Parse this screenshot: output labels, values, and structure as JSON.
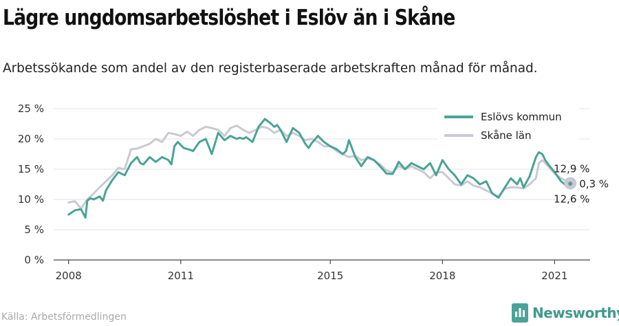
{
  "title": "Lägre ungdomsarbetslöshet i Eslöv än i Skåne",
  "subtitle": "Arbetssökande som andel av den registerbaserade arbetskraften månad för månad.",
  "source": "Källa: Arbetsförmedlingen",
  "brand": "Newsworthy",
  "colors": {
    "eslov": "#4aa396",
    "skane": "#c9c9d3",
    "grid": "#e3e3e3",
    "axis": "#444444"
  },
  "chart_data": {
    "type": "line",
    "x_range": [
      2007.6,
      2021.95
    ],
    "ylim": [
      0,
      25
    ],
    "yticks": [
      0,
      5,
      10,
      15,
      20,
      25
    ],
    "ytick_labels": [
      "0 %",
      "5 %",
      "10 %",
      "15 %",
      "20 %",
      "25 %"
    ],
    "xticks": [
      2008,
      2011,
      2015,
      2018,
      2021
    ],
    "xtick_labels": [
      "2008",
      "2011",
      "2015",
      "2018",
      "2021"
    ],
    "grid": "horizontal",
    "legend": {
      "placement": "top-right",
      "entries": [
        "Eslövs kommun",
        "Skåne län"
      ]
    },
    "annotations": {
      "eslov_end": "12,6 %",
      "skane_end": "12,9 %",
      "difference": "0,3 %"
    },
    "series": [
      {
        "name": "Eslövs kommun",
        "x": [
          2008.0,
          2008.17,
          2008.33,
          2008.45,
          2008.5,
          2008.58,
          2008.67,
          2008.83,
          2008.92,
          2009.0,
          2009.17,
          2009.33,
          2009.5,
          2009.67,
          2009.83,
          2009.92,
          2010.0,
          2010.17,
          2010.33,
          2010.5,
          2010.67,
          2010.75,
          2010.83,
          2010.92,
          2011.08,
          2011.25,
          2011.33,
          2011.5,
          2011.67,
          2011.83,
          2012.0,
          2012.17,
          2012.33,
          2012.5,
          2012.58,
          2012.67,
          2012.75,
          2012.92,
          2013.08,
          2013.25,
          2013.42,
          2013.5,
          2013.58,
          2013.67,
          2013.83,
          2014.0,
          2014.17,
          2014.33,
          2014.42,
          2014.5,
          2014.67,
          2014.83,
          2015.0,
          2015.17,
          2015.33,
          2015.42,
          2015.5,
          2015.67,
          2015.83,
          2016.0,
          2016.17,
          2016.33,
          2016.5,
          2016.67,
          2016.83,
          2017.0,
          2017.17,
          2017.33,
          2017.5,
          2017.67,
          2017.83,
          2018.0,
          2018.17,
          2018.33,
          2018.5,
          2018.67,
          2018.83,
          2019.0,
          2019.17,
          2019.33,
          2019.5,
          2019.67,
          2019.83,
          2020.0,
          2020.08,
          2020.17,
          2020.33,
          2020.5,
          2020.58,
          2020.67,
          2020.75,
          2020.83,
          2021.0,
          2021.17,
          2021.33,
          2021.42
        ],
        "y": [
          7.5,
          8.2,
          8.4,
          7.0,
          9.8,
          10.2,
          10.0,
          10.5,
          9.8,
          11.5,
          13.2,
          14.5,
          14.0,
          16.0,
          17.0,
          16.0,
          15.8,
          17.0,
          16.2,
          17.0,
          16.5,
          15.8,
          18.8,
          19.5,
          18.5,
          18.2,
          18.0,
          19.5,
          20.0,
          17.5,
          21.0,
          19.8,
          20.5,
          20.0,
          20.2,
          20.0,
          20.3,
          19.5,
          22.0,
          23.3,
          22.5,
          22.0,
          22.3,
          21.5,
          19.5,
          21.8,
          21.0,
          19.2,
          18.5,
          19.3,
          20.5,
          19.5,
          18.8,
          18.3,
          17.5,
          18.0,
          19.8,
          17.0,
          15.5,
          17.0,
          16.5,
          15.5,
          14.3,
          14.2,
          16.2,
          15.0,
          16.0,
          15.5,
          15.0,
          16.0,
          14.0,
          16.5,
          15.0,
          14.0,
          12.5,
          14.0,
          13.5,
          12.5,
          13.0,
          11.0,
          10.3,
          12.0,
          13.5,
          12.5,
          13.5,
          12.0,
          13.8,
          17.0,
          17.8,
          17.5,
          16.5,
          15.8,
          14.5,
          13.0,
          12.2,
          12.6
        ]
      },
      {
        "name": "Skåne län",
        "x": [
          2008.0,
          2008.17,
          2008.33,
          2008.5,
          2008.67,
          2008.83,
          2009.0,
          2009.17,
          2009.33,
          2009.5,
          2009.67,
          2009.83,
          2010.0,
          2010.17,
          2010.33,
          2010.5,
          2010.67,
          2010.83,
          2011.0,
          2011.17,
          2011.33,
          2011.5,
          2011.67,
          2011.83,
          2012.0,
          2012.17,
          2012.33,
          2012.5,
          2012.67,
          2012.83,
          2013.0,
          2013.17,
          2013.33,
          2013.5,
          2013.67,
          2013.83,
          2014.0,
          2014.17,
          2014.33,
          2014.5,
          2014.67,
          2014.83,
          2015.0,
          2015.17,
          2015.33,
          2015.5,
          2015.67,
          2015.83,
          2016.0,
          2016.17,
          2016.33,
          2016.5,
          2016.67,
          2016.83,
          2017.0,
          2017.17,
          2017.33,
          2017.5,
          2017.67,
          2017.83,
          2018.0,
          2018.17,
          2018.33,
          2018.5,
          2018.67,
          2018.83,
          2019.0,
          2019.17,
          2019.33,
          2019.5,
          2019.67,
          2019.83,
          2020.0,
          2020.17,
          2020.33,
          2020.5,
          2020.58,
          2020.67,
          2020.83,
          2021.0,
          2021.17,
          2021.33,
          2021.42
        ],
        "y": [
          9.5,
          9.7,
          8.5,
          10.0,
          11.0,
          12.0,
          13.0,
          14.0,
          15.2,
          15.0,
          18.3,
          18.4,
          18.8,
          19.2,
          20.0,
          19.5,
          21.0,
          20.8,
          20.5,
          21.2,
          20.5,
          21.5,
          22.0,
          21.8,
          21.5,
          20.5,
          21.8,
          22.2,
          21.5,
          21.0,
          21.5,
          22.0,
          21.8,
          21.0,
          21.5,
          20.5,
          21.0,
          20.5,
          19.8,
          20.0,
          19.5,
          18.8,
          18.8,
          18.0,
          17.5,
          17.0,
          17.2,
          16.5,
          16.8,
          16.5,
          15.8,
          14.8,
          14.5,
          15.5,
          15.0,
          15.5,
          15.0,
          14.5,
          13.5,
          14.5,
          14.5,
          13.5,
          12.5,
          12.3,
          13.0,
          12.3,
          12.0,
          11.5,
          11.0,
          10.5,
          11.8,
          12.0,
          12.0,
          11.8,
          12.5,
          13.5,
          16.0,
          16.5,
          15.5,
          14.3,
          13.5,
          13.0,
          12.9
        ]
      }
    ]
  }
}
